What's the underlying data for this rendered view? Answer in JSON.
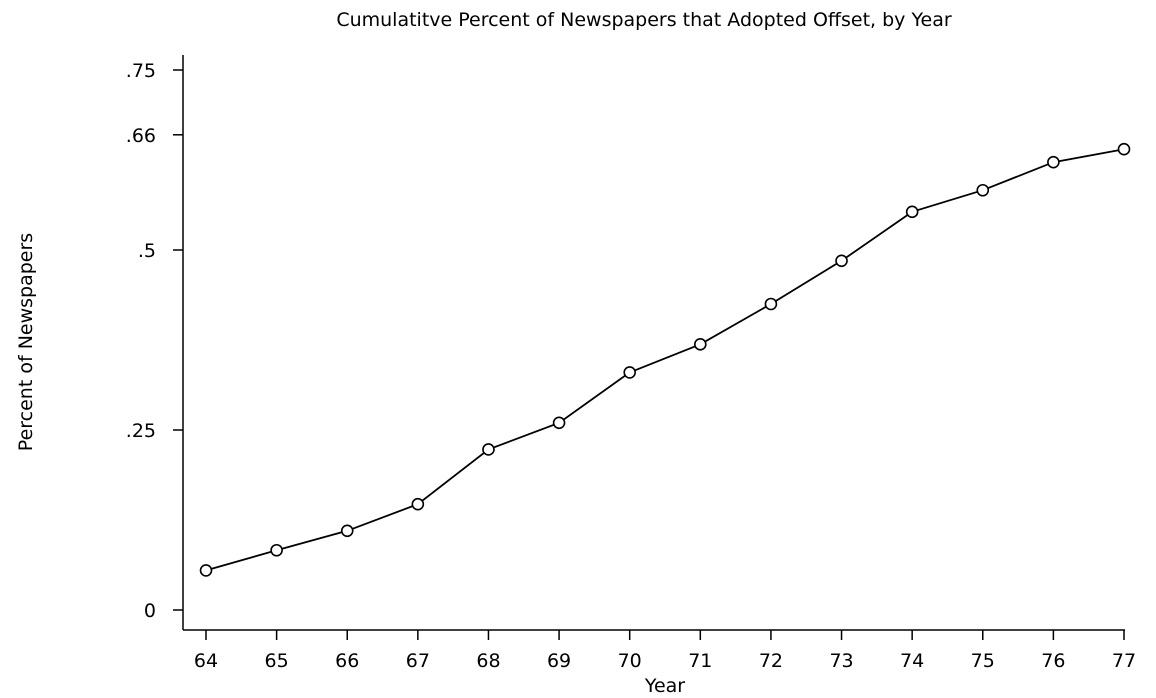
{
  "chart_data": {
    "type": "line",
    "title": "Cumulatitve Percent of Newspapers that Adopted Offset, by Year",
    "xlabel": "Year",
    "ylabel": "Percent of Newspapers",
    "x": [
      "64",
      "65",
      "66",
      "67",
      "68",
      "69",
      "70",
      "71",
      "72",
      "73",
      "74",
      "75",
      "76",
      "77"
    ],
    "series": [
      {
        "values": [
          0.055,
          0.083,
          0.11,
          0.147,
          0.223,
          0.26,
          0.33,
          0.369,
          0.425,
          0.485,
          0.553,
          0.583,
          0.622,
          0.64
        ],
        "marker": "hollow-circle",
        "color": "#000000"
      }
    ],
    "yticks": [
      {
        "value": 0,
        "label": "0"
      },
      {
        "value": 0.25,
        "label": ".25"
      },
      {
        "value": 0.5,
        "label": ".5"
      },
      {
        "value": 0.66,
        "label": ".66"
      },
      {
        "value": 0.75,
        "label": ".75"
      }
    ],
    "ylim": [
      0,
      0.75
    ],
    "grid": false,
    "legend": "none"
  }
}
